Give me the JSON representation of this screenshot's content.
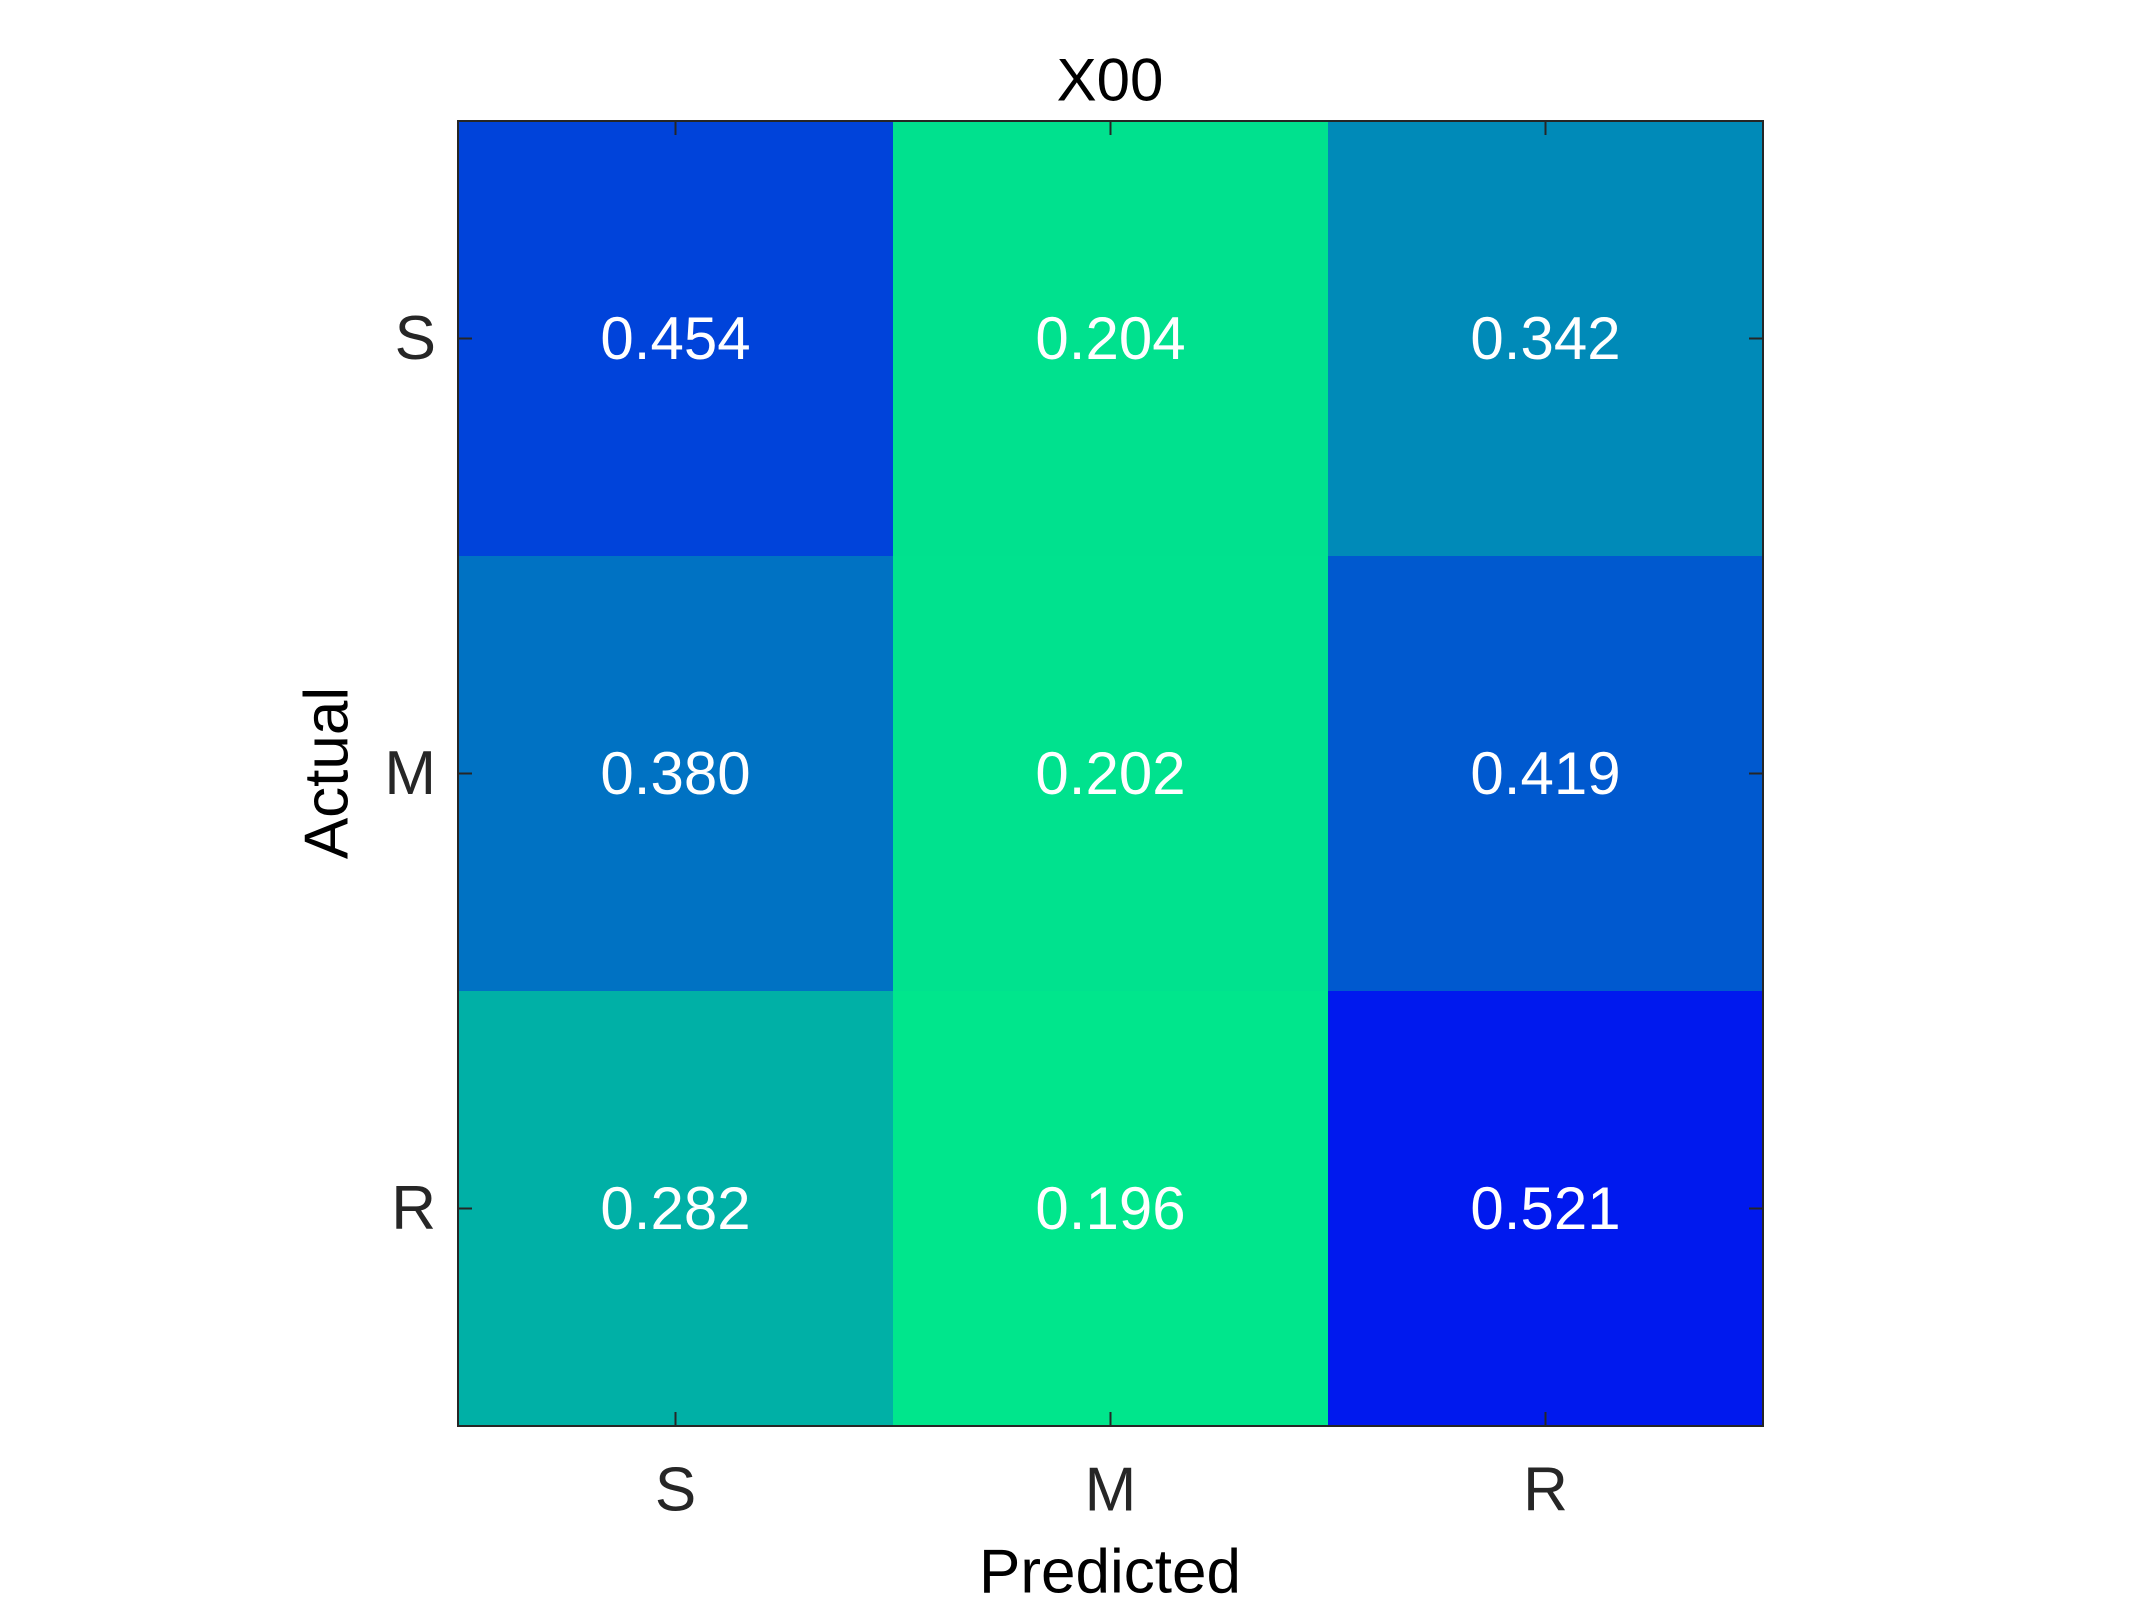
{
  "chart_data": {
    "type": "heatmap",
    "title": "X00",
    "xlabel": "Predicted",
    "ylabel": "Actual",
    "x_categories": [
      "S",
      "M",
      "R"
    ],
    "y_categories": [
      "S",
      "M",
      "R"
    ],
    "values": [
      [
        0.454,
        0.204,
        0.342
      ],
      [
        0.38,
        0.202,
        0.419
      ],
      [
        0.282,
        0.196,
        0.521
      ]
    ],
    "value_labels": [
      [
        "0.454",
        "0.204",
        "0.342"
      ],
      [
        "0.380",
        "0.202",
        "0.419"
      ],
      [
        "0.282",
        "0.196",
        "0.521"
      ]
    ],
    "colormap": {
      "low_color": "#00e68c",
      "high_color": "#0019ee",
      "range": [
        0.196,
        0.521
      ]
    },
    "grid": false,
    "legend": "none"
  }
}
